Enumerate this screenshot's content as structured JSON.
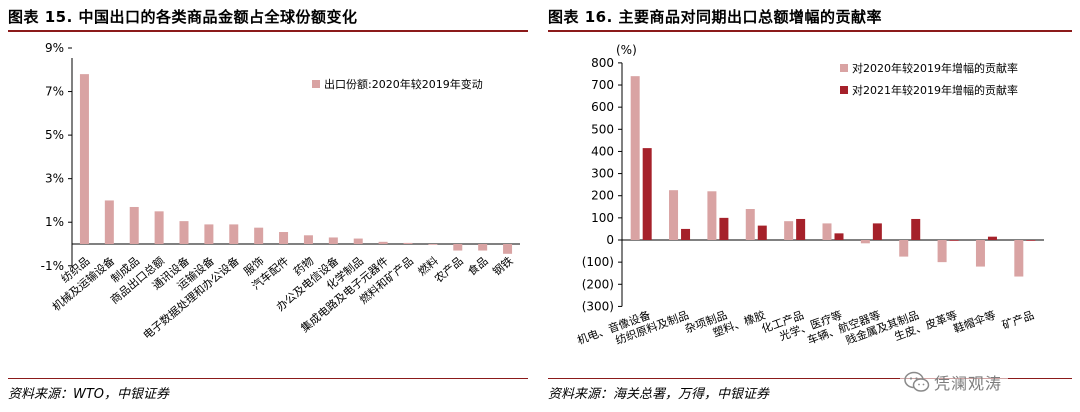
{
  "left": {
    "title": "图表 15. 中国出口的各类商品金额占全球份额变化",
    "source": "资料来源：WTO，中银证券"
  },
  "right": {
    "title": "图表 16. 主要商品对同期出口总额增幅的贡献率",
    "source": "资料来源：海关总署，万得，中银证券"
  },
  "watermark": {
    "text": "凭澜观涛",
    "icon": "wechat-icon"
  },
  "colors": {
    "light": "#d9a3a3",
    "dark": "#a5212a",
    "rule": "#8b1a1a"
  },
  "chart_data": [
    {
      "type": "bar",
      "title": "",
      "categories": [
        "纺织品",
        "机械及运输设备",
        "制成品",
        "商品出口总额",
        "通讯设备",
        "运输设备",
        "电子数据处理和办公设备",
        "服饰",
        "汽车配件",
        "药物",
        "办公及电信设备",
        "化学制品",
        "集成电路及电子元器件",
        "燃料和矿产品",
        "燃料",
        "农产品",
        "食品",
        "钢铁"
      ],
      "series": [
        {
          "name": "出口份额:2020年较2019年变动",
          "values": [
            7.8,
            2.0,
            1.7,
            1.5,
            1.05,
            0.9,
            0.9,
            0.75,
            0.55,
            0.4,
            0.3,
            0.25,
            0.1,
            0.05,
            0.0,
            -0.3,
            -0.3,
            -0.45
          ]
        }
      ],
      "ytick_labels": [
        "-1%",
        "1%",
        "3%",
        "5%",
        "7%",
        "9%"
      ],
      "ylim": [
        -1,
        9
      ],
      "legend": "top-right",
      "grid": false
    },
    {
      "type": "bar",
      "title": "",
      "ylabel": "(%)",
      "categories": [
        "机电、音像设备",
        "纺织原料及制品",
        "杂项制品",
        "塑料、橡胶",
        "化工产品",
        "光学、医疗等",
        "车辆、航空器等",
        "贱金属及其制品",
        "生皮、皮革等",
        "鞋帽伞等",
        "矿产品"
      ],
      "series": [
        {
          "name": "对2020年较2019年增幅的贡献率",
          "values": [
            740,
            225,
            220,
            140,
            85,
            75,
            -15,
            -75,
            -100,
            -120,
            -165
          ]
        },
        {
          "name": "对2021年较2019年增幅的贡献率",
          "values": [
            415,
            50,
            100,
            65,
            95,
            30,
            75,
            95,
            0,
            15,
            0
          ]
        }
      ],
      "ytick_labels": [
        "(300)",
        "(200)",
        "(100)",
        "0",
        "100",
        "200",
        "300",
        "400",
        "500",
        "600",
        "700",
        "800"
      ],
      "ylim": [
        -300,
        800
      ],
      "legend": "top-right",
      "grid": false
    }
  ]
}
